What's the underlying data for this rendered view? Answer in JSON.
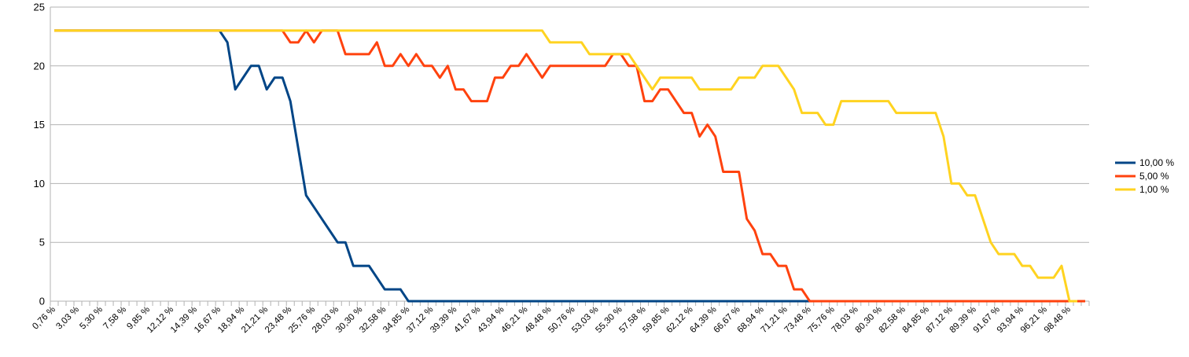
{
  "chart_data": {
    "type": "line",
    "title": "",
    "xlabel": "",
    "ylabel": "",
    "ylim": [
      0,
      25
    ],
    "yticks": [
      0,
      5,
      10,
      15,
      20,
      25
    ],
    "grid": true,
    "legend_position": "right",
    "x_tick_labels": [
      "0,76 %",
      "3,03 %",
      "5,30 %",
      "7,58 %",
      "9,85 %",
      "12,12 %",
      "14,39 %",
      "16,67 %",
      "18,94 %",
      "21,21 %",
      "23,48 %",
      "25,76 %",
      "28,03 %",
      "30,30 %",
      "32,58 %",
      "34,85 %",
      "37,12 %",
      "39,39 %",
      "41,67 %",
      "43,94 %",
      "46,21 %",
      "48,48 %",
      "50,76 %",
      "53,03 %",
      "55,30 %",
      "57,58 %",
      "59,85 %",
      "62,12 %",
      "64,39 %",
      "66,67 %",
      "68,94 %",
      "71,21 %",
      "73,48 %",
      "75,76 %",
      "78,03 %",
      "80,30 %",
      "82,58 %",
      "84,85 %",
      "87,12 %",
      "89,39 %",
      "91,67 %",
      "93,94 %",
      "96,21 %",
      "98,48 %"
    ],
    "series": [
      {
        "name": "10,00 %",
        "color": "#004586",
        "values": [
          23,
          23,
          23,
          23,
          23,
          23,
          23,
          23,
          23,
          23,
          23,
          23,
          23,
          23,
          23,
          23,
          23,
          23,
          23,
          23,
          23,
          23,
          22,
          18,
          19,
          20,
          20,
          18,
          19,
          19,
          17,
          13,
          9,
          8,
          7,
          6,
          5,
          5,
          3,
          3,
          3,
          2,
          1,
          1,
          1,
          0,
          0,
          0,
          0,
          0,
          0,
          0,
          0,
          0,
          0,
          0,
          0,
          0,
          0,
          0,
          0,
          0,
          0,
          0,
          0,
          0,
          0,
          0,
          0,
          0,
          0,
          0,
          0,
          0,
          0,
          0,
          0,
          0,
          0,
          0,
          0,
          0,
          0,
          0,
          0,
          0,
          0,
          0,
          0,
          0,
          0,
          0,
          0,
          0,
          0,
          0,
          0,
          0,
          0,
          0,
          0,
          0,
          0,
          0,
          0,
          0,
          0,
          0,
          0,
          0,
          0,
          0,
          0,
          0,
          0,
          0,
          0,
          0,
          0,
          0,
          0,
          0,
          0,
          0,
          0,
          0,
          0,
          0,
          0,
          0,
          0,
          0
        ]
      },
      {
        "name": "5,00 %",
        "color": "#ff420e",
        "values": [
          23,
          23,
          23,
          23,
          23,
          23,
          23,
          23,
          23,
          23,
          23,
          23,
          23,
          23,
          23,
          23,
          23,
          23,
          23,
          23,
          23,
          23,
          23,
          23,
          23,
          23,
          23,
          23,
          23,
          23,
          22,
          22,
          23,
          22,
          23,
          23,
          23,
          21,
          21,
          21,
          21,
          22,
          20,
          20,
          21,
          20,
          21,
          20,
          20,
          19,
          20,
          18,
          18,
          17,
          17,
          17,
          19,
          19,
          20,
          20,
          21,
          20,
          19,
          20,
          20,
          20,
          20,
          20,
          20,
          20,
          20,
          21,
          21,
          20,
          20,
          17,
          17,
          18,
          18,
          17,
          16,
          16,
          14,
          15,
          14,
          11,
          11,
          11,
          7,
          6,
          4,
          4,
          3,
          3,
          1,
          1,
          0,
          0,
          0,
          0,
          0,
          0,
          0,
          0,
          0,
          0,
          0,
          0,
          0,
          0,
          0,
          0,
          0,
          0,
          0,
          0,
          0,
          0,
          0,
          0,
          0,
          0,
          0,
          0,
          0,
          0,
          0,
          0,
          0,
          0,
          0,
          0
        ]
      },
      {
        "name": "1,00 %",
        "color": "#ffd320",
        "values": [
          23,
          23,
          23,
          23,
          23,
          23,
          23,
          23,
          23,
          23,
          23,
          23,
          23,
          23,
          23,
          23,
          23,
          23,
          23,
          23,
          23,
          23,
          23,
          23,
          23,
          23,
          23,
          23,
          23,
          23,
          23,
          23,
          23,
          23,
          23,
          23,
          23,
          23,
          23,
          23,
          23,
          23,
          23,
          23,
          23,
          23,
          23,
          23,
          23,
          23,
          23,
          23,
          23,
          23,
          23,
          23,
          23,
          23,
          23,
          23,
          23,
          23,
          23,
          22,
          22,
          22,
          22,
          22,
          21,
          21,
          21,
          21,
          21,
          21,
          20,
          19,
          18,
          19,
          19,
          19,
          19,
          19,
          18,
          18,
          18,
          18,
          18,
          19,
          19,
          19,
          20,
          20,
          20,
          19,
          18,
          16,
          16,
          16,
          15,
          15,
          17,
          17,
          17,
          17,
          17,
          17,
          17,
          16,
          16,
          16,
          16,
          16,
          16,
          14,
          10,
          10,
          9,
          9,
          7,
          5,
          4,
          4,
          4,
          3,
          3,
          2,
          2,
          2,
          3,
          0,
          0
        ]
      }
    ]
  }
}
